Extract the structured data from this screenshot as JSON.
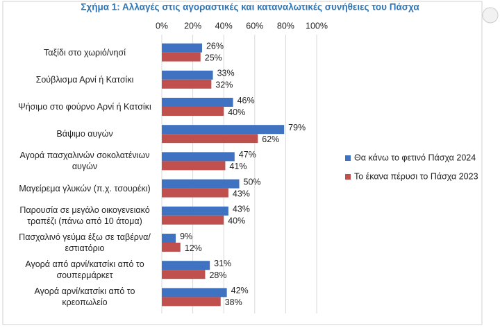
{
  "chart_data": {
    "type": "bar",
    "orientation": "horizontal",
    "title": "Σχήμα 1: Αλλαγές στις αγοραστικές και καταναλωτικές συνήθειες του Πάσχα",
    "categories": [
      "Ταξίδι στο χωριό/νησί",
      "Σούβλισμα Αρνί ή Κατσίκι",
      "Ψήσιμο στο φούρνο Αρνί ή Κατσίκι",
      "Βάψιμο αυγών",
      "Αγορά πασχαλινών σοκολατένιων αυγών",
      "Μαγείρεμα γλυκών (π.χ. τσουρέκι)",
      "Παρουσία σε μεγάλο οικογενειακό τραπέζι (πάνω από 10 άτομα)",
      "Πασχαλινό γεύμα έξω σε ταβέρνα/εστιατόριο",
      "Αγορά από αρνί/κατσίκι από το σουπερμάρκετ",
      "Αγορά αρνί/κατσίκι από το κρεοπωλείο"
    ],
    "series": [
      {
        "name": "Θα κάνω το φετινό Πάσχα 2024",
        "color": "#3f72c0",
        "values": [
          26,
          33,
          46,
          79,
          47,
          50,
          43,
          9,
          31,
          42
        ],
        "value_labels": [
          "26%",
          "33%",
          "46%",
          "79%",
          "47%",
          "50%",
          "43%",
          "9%",
          "31%",
          "42%"
        ]
      },
      {
        "name": "Το έκανα πέρυσι το Πάσχα 2023",
        "color": "#c0504d",
        "values": [
          25,
          32,
          40,
          62,
          41,
          43,
          40,
          12,
          28,
          38
        ],
        "value_labels": [
          "25%",
          "32%",
          "40%",
          "62%",
          "41%",
          "43%",
          "40%",
          "12%",
          "28%",
          "38%"
        ]
      }
    ],
    "xlim": [
      0,
      100
    ],
    "xticks": [
      {
        "value": 0,
        "label": "0%"
      },
      {
        "value": 20,
        "label": "20%"
      },
      {
        "value": 40,
        "label": "40%"
      },
      {
        "value": 60,
        "label": "60%"
      },
      {
        "value": 80,
        "label": "80%"
      },
      {
        "value": 100,
        "label": "100%"
      }
    ],
    "grid": true,
    "legend": "right"
  }
}
